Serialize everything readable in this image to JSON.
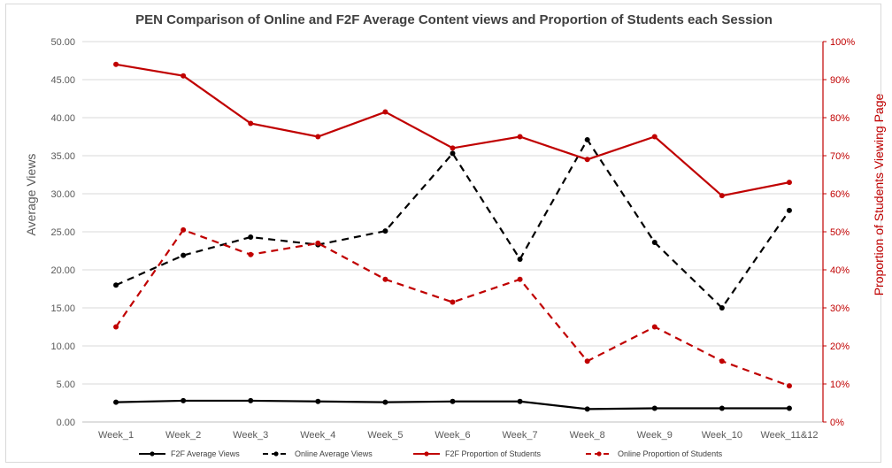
{
  "chart_data": {
    "type": "line",
    "title": "PEN Comparison of Online and F2F Average Content views and Proportion of Students each Session",
    "ylabel": "Average Views",
    "y2label": "Proportion of Students Viewing Page",
    "ylim": [
      0,
      50
    ],
    "y2lim": [
      0,
      1
    ],
    "yticks": [
      "0.00",
      "5.00",
      "10.00",
      "15.00",
      "20.00",
      "25.00",
      "30.00",
      "35.00",
      "40.00",
      "45.00",
      "50.00"
    ],
    "y2ticks": [
      "0%",
      "10%",
      "20%",
      "30%",
      "40%",
      "50%",
      "60%",
      "70%",
      "80%",
      "90%",
      "100%"
    ],
    "categories": [
      "Week_1",
      "Week_2",
      "Week_3",
      "Week_4",
      "Week_5",
      "Week_6",
      "Week_7",
      "Week_8",
      "Week_9",
      "Week_10",
      "Week_11&12"
    ],
    "grid": "horizontal",
    "legend_position": "bottom",
    "series": [
      {
        "name": "F2F Average Views",
        "axis": "left",
        "color": "#000000",
        "dash": "solid",
        "values": [
          2.6,
          2.8,
          2.8,
          2.7,
          2.6,
          2.7,
          2.7,
          1.7,
          1.8,
          1.8,
          1.8
        ]
      },
      {
        "name": "Online Average Views",
        "axis": "left",
        "color": "#000000",
        "dash": "dashed",
        "values": [
          18.0,
          21.9,
          24.3,
          23.3,
          25.1,
          35.3,
          21.4,
          37.1,
          23.6,
          15.0,
          27.8
        ]
      },
      {
        "name": "F2F Proportion of Students",
        "axis": "right",
        "color": "#c00000",
        "dash": "solid",
        "values": [
          0.94,
          0.91,
          0.785,
          0.75,
          0.815,
          0.72,
          0.75,
          0.69,
          0.75,
          0.595,
          0.63
        ]
      },
      {
        "name": "Online Proportion of Students",
        "axis": "right",
        "color": "#c00000",
        "dash": "dashed",
        "values": [
          0.25,
          0.505,
          0.44,
          0.47,
          0.375,
          0.315,
          0.375,
          0.16,
          0.25,
          0.16,
          0.095
        ]
      }
    ]
  }
}
